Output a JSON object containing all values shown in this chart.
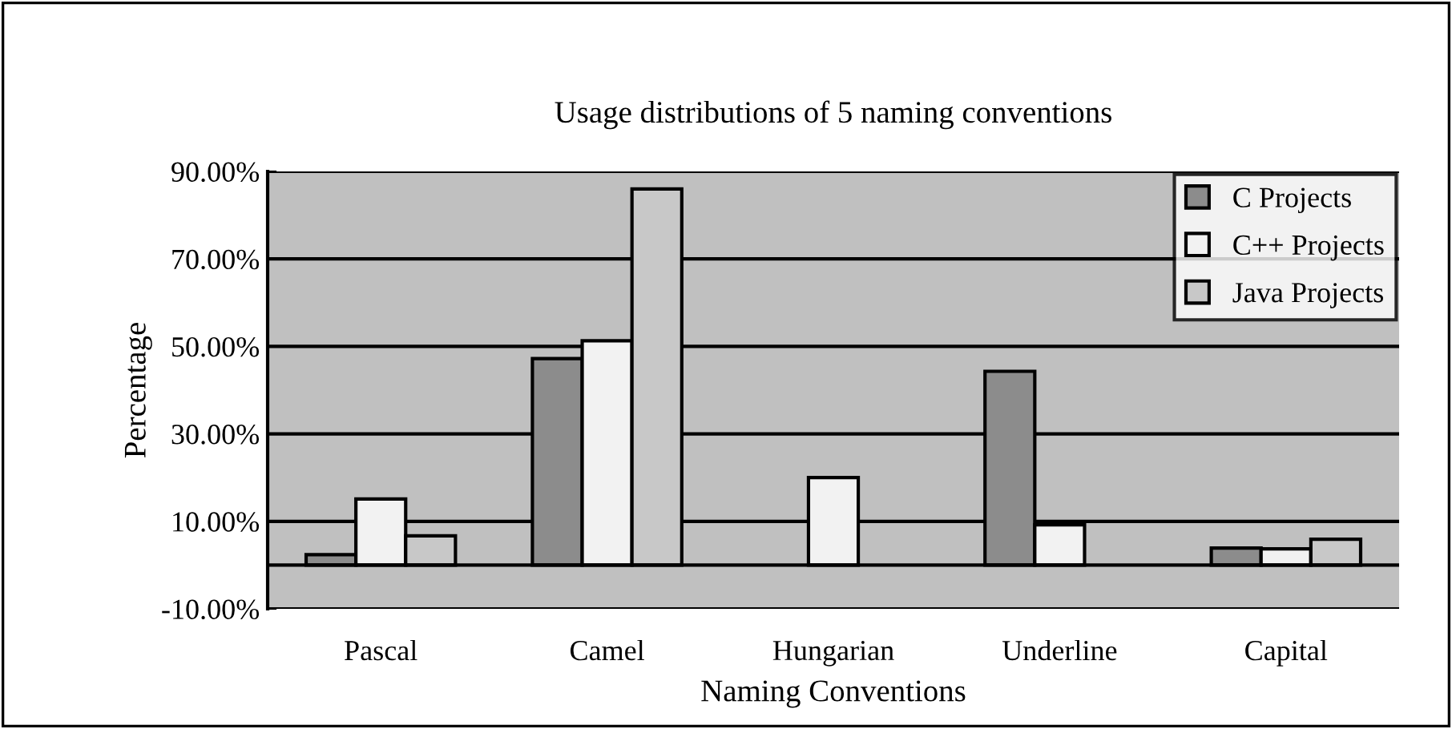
{
  "chart_data": {
    "type": "bar",
    "title": "Usage distributions of 5 naming conventions",
    "xlabel": "Naming Conventions",
    "ylabel": "Percentage",
    "categories": [
      "Pascal",
      "Camel",
      "Hungarian",
      "Underline",
      "Capital"
    ],
    "series": [
      {
        "name": "C Projects",
        "color": "#8c8c8c",
        "values": [
          2.4,
          47.2,
          null,
          44.3,
          3.9
        ]
      },
      {
        "name": "C++ Projects",
        "color": "#f2f2f2",
        "values": [
          15.1,
          51.3,
          20.0,
          9.2,
          3.7
        ]
      },
      {
        "name": "Java Projects",
        "color": "#c8c8c8",
        "values": [
          6.7,
          86,
          null,
          null,
          5.9
        ]
      }
    ],
    "ylim": [
      -10,
      90
    ],
    "yticks": [
      {
        "value": -10,
        "label": "-10.00%"
      },
      {
        "value": 10,
        "label": "10.00%"
      },
      {
        "value": 30,
        "label": "30.00%"
      },
      {
        "value": 50,
        "label": "50.00%"
      },
      {
        "value": 70,
        "label": "70.00%"
      },
      {
        "value": 90,
        "label": "90.00%"
      }
    ],
    "grid": "y",
    "legend": "top right"
  }
}
